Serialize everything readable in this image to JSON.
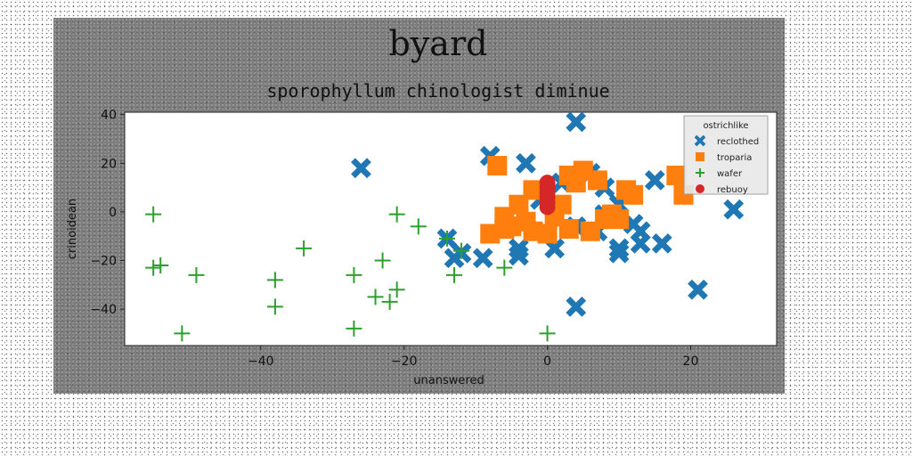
{
  "chart_data": {
    "type": "scatter",
    "suptitle": "byard",
    "title": "sporophyllum chinologist diminue",
    "xlabel": "unanswered",
    "ylabel": "crinoidean",
    "xlim": [
      -59,
      32
    ],
    "ylim": [
      -55,
      41
    ],
    "xticks": [
      -40,
      -20,
      0,
      20
    ],
    "yticks": [
      -40,
      -20,
      0,
      20,
      40
    ],
    "xtick_labels": [
      "−40",
      "−20",
      "0",
      "20"
    ],
    "ytick_labels": [
      "−40",
      "−20",
      "0",
      "20",
      "40"
    ],
    "grid": false,
    "legend": {
      "title": "ostrichlike",
      "placement": "top-right"
    },
    "series": [
      {
        "name": "reclothed",
        "marker": "x",
        "color": "#1f77b4",
        "points": [
          [
            4,
            37
          ],
          [
            -26,
            18
          ],
          [
            -8,
            23
          ],
          [
            -3,
            20
          ],
          [
            15,
            13
          ],
          [
            26,
            1
          ],
          [
            -14,
            -11
          ],
          [
            -12,
            -17
          ],
          [
            -13,
            -19
          ],
          [
            -9,
            -19
          ],
          [
            -4,
            -18
          ],
          [
            -4,
            -15
          ],
          [
            1,
            -15
          ],
          [
            10,
            -15
          ],
          [
            10,
            -17
          ],
          [
            13,
            -13
          ],
          [
            16,
            -13
          ],
          [
            21,
            -32
          ],
          [
            4,
            -39
          ],
          [
            8,
            10
          ],
          [
            10,
            3
          ],
          [
            12,
            -5
          ],
          [
            7,
            -8
          ],
          [
            4,
            -6
          ],
          [
            11,
            8
          ],
          [
            6,
            16
          ],
          [
            2,
            12
          ],
          [
            8,
            -1
          ],
          [
            -1,
            5
          ],
          [
            13,
            -8
          ]
        ]
      },
      {
        "name": "troparia",
        "marker": "s",
        "color": "#ff7f0e",
        "points": [
          [
            -7,
            19
          ],
          [
            -8,
            -9
          ],
          [
            -6,
            -2
          ],
          [
            -5,
            -6
          ],
          [
            -3,
            -4
          ],
          [
            -2,
            -8
          ],
          [
            -2,
            9
          ],
          [
            -4,
            3
          ],
          [
            0,
            -9
          ],
          [
            1,
            -2
          ],
          [
            3,
            -7
          ],
          [
            2,
            3
          ],
          [
            4,
            12
          ],
          [
            3,
            15
          ],
          [
            5,
            17
          ],
          [
            6,
            -8
          ],
          [
            7,
            13
          ],
          [
            8,
            -3
          ],
          [
            9,
            -1
          ],
          [
            10,
            -3
          ],
          [
            11,
            9
          ],
          [
            12,
            7
          ],
          [
            18,
            15
          ],
          [
            19,
            7
          ],
          [
            -6,
            -7
          ]
        ]
      },
      {
        "name": "wafer",
        "marker": "+",
        "color": "#2ca02c",
        "points": [
          [
            -55,
            -1
          ],
          [
            -55,
            -23
          ],
          [
            -54,
            -22
          ],
          [
            -49,
            -26
          ],
          [
            -51,
            -50
          ],
          [
            -38,
            -28
          ],
          [
            -38,
            -39
          ],
          [
            -34,
            -15
          ],
          [
            -27,
            -26
          ],
          [
            -27,
            -48
          ],
          [
            -24,
            -35
          ],
          [
            -23,
            -20
          ],
          [
            -22,
            -37
          ],
          [
            -21,
            -32
          ],
          [
            -21,
            -1
          ],
          [
            -18,
            -6
          ],
          [
            -14,
            -11
          ],
          [
            -13,
            -26
          ],
          [
            -12,
            -16
          ],
          [
            -6,
            -23
          ],
          [
            0,
            -50
          ]
        ]
      },
      {
        "name": "rebuoy",
        "marker": "o",
        "color": "#d62728",
        "points": [
          [
            0,
            4
          ],
          [
            0,
            6
          ],
          [
            0,
            8
          ],
          [
            0,
            10
          ],
          [
            0,
            12
          ],
          [
            0,
            2
          ]
        ]
      }
    ]
  }
}
